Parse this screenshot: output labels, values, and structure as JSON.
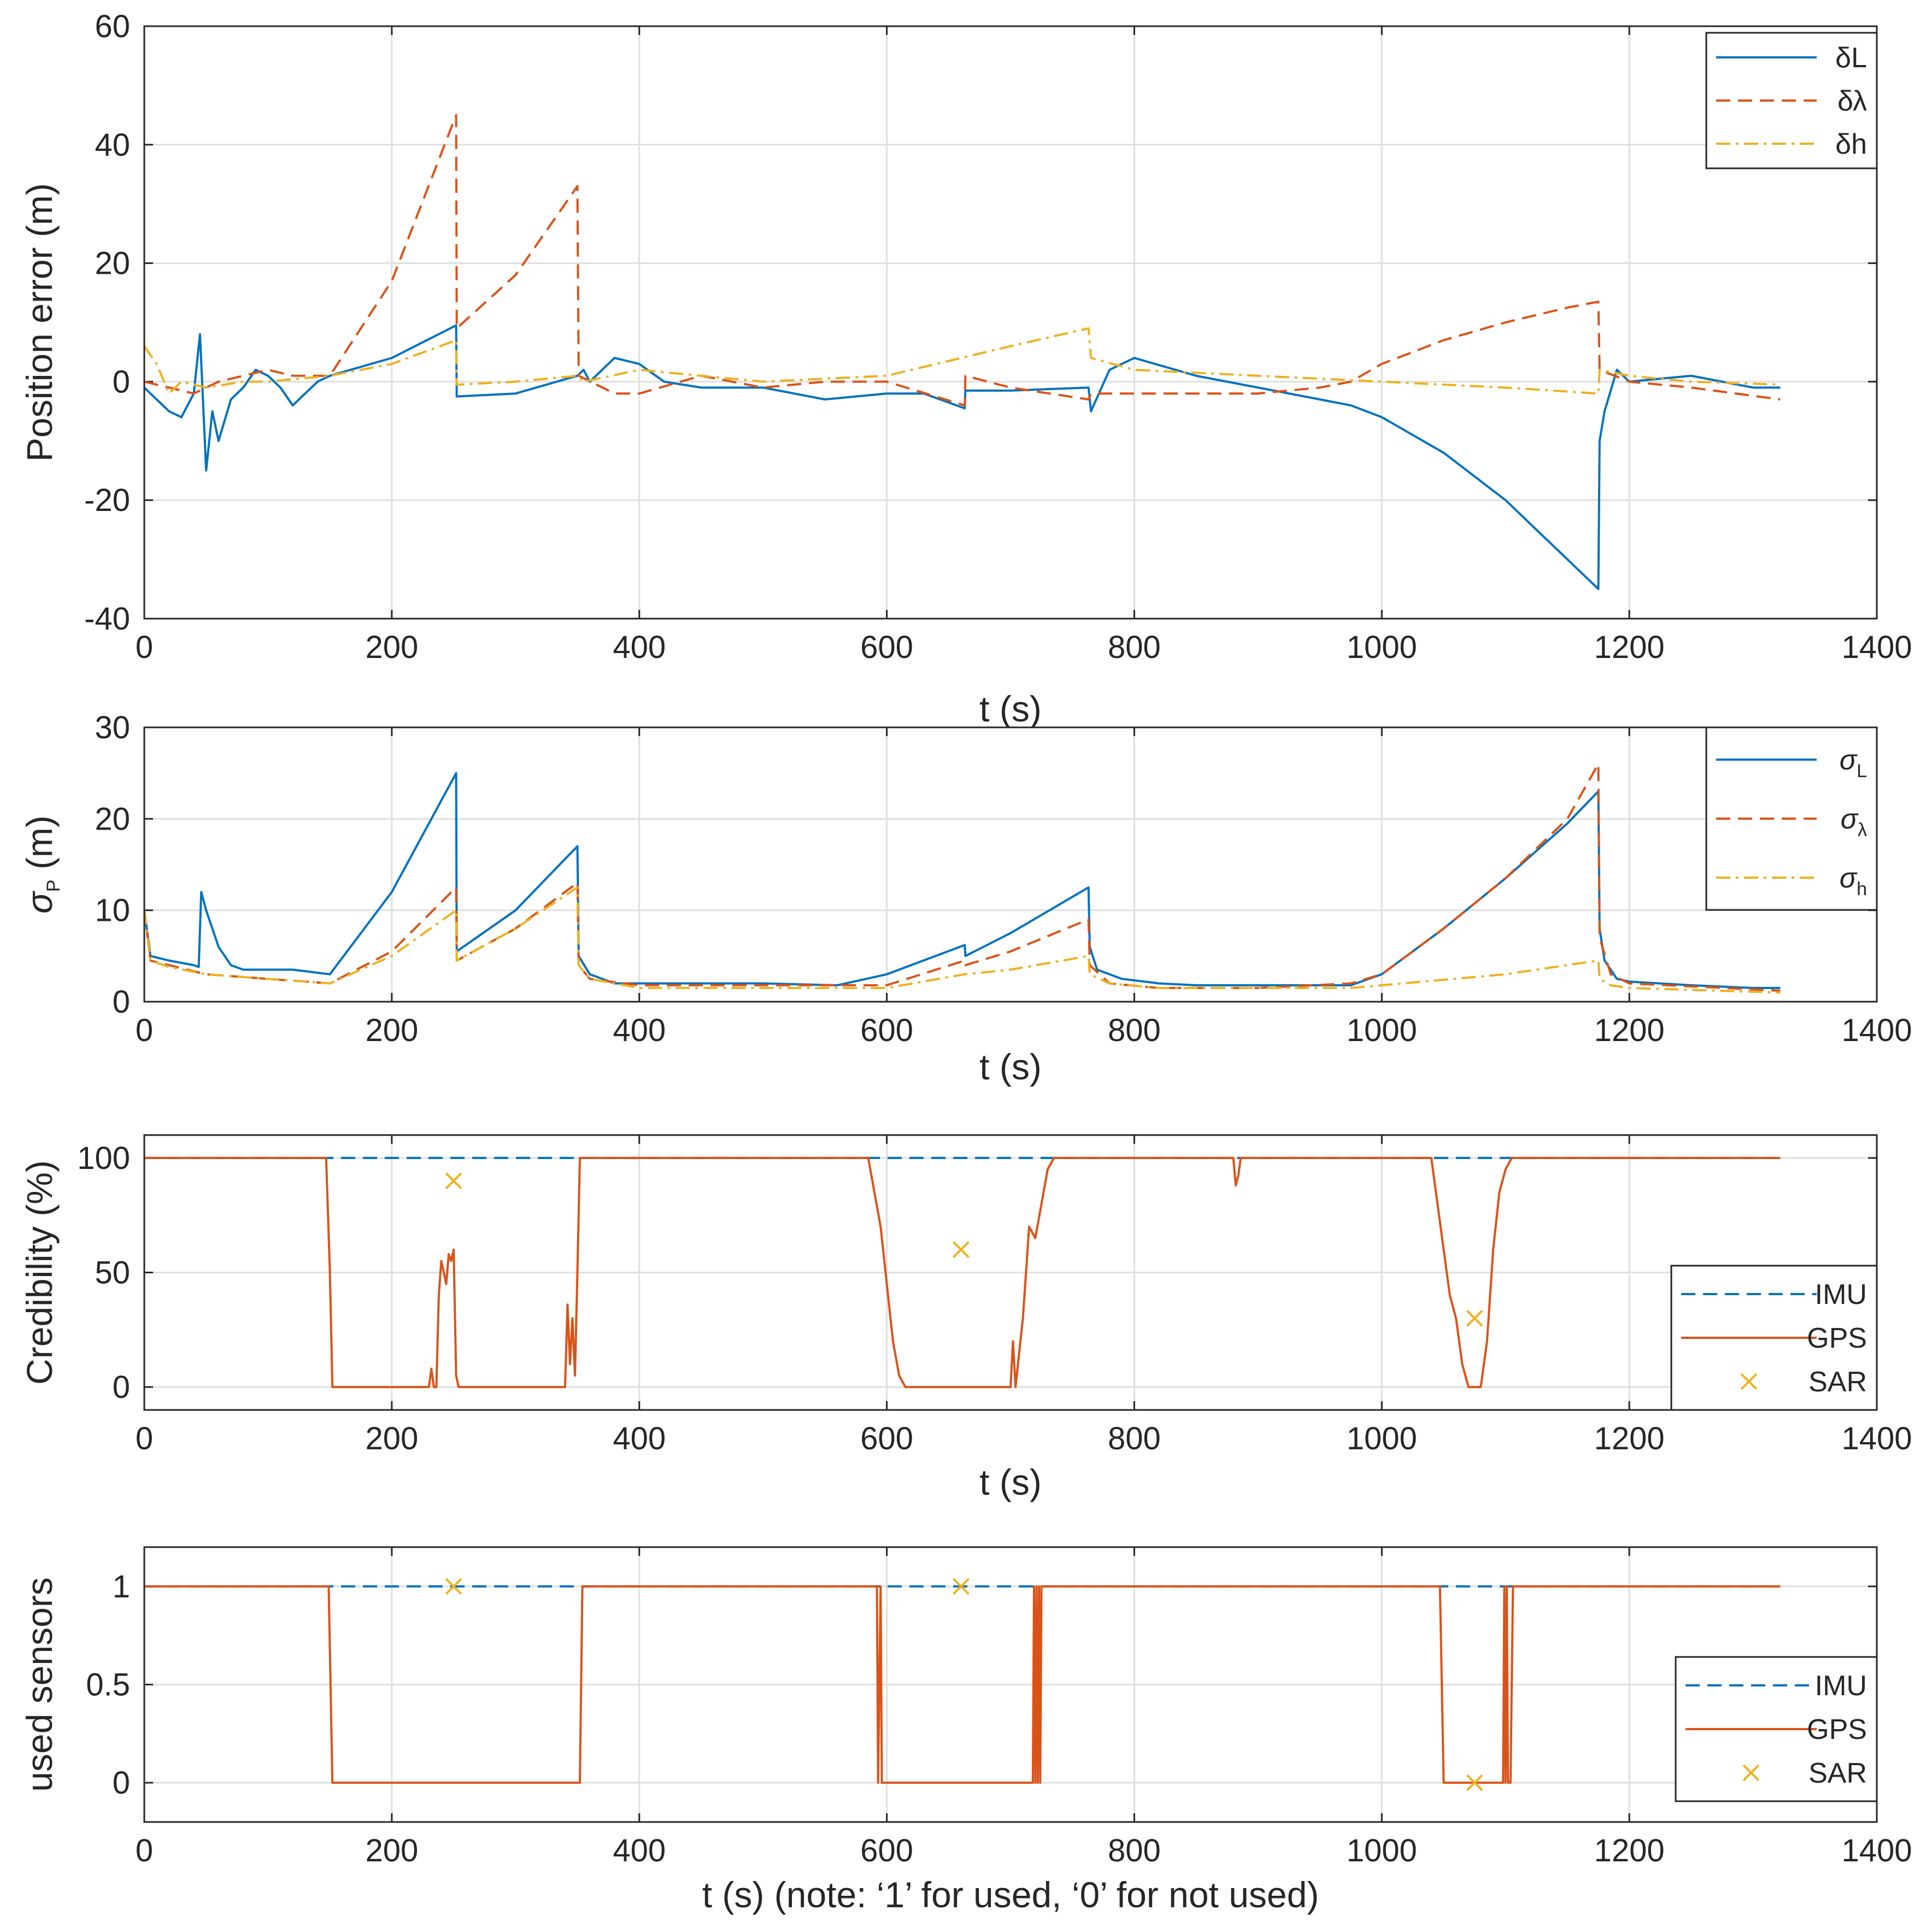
{
  "colors": {
    "blue": "#0072BD",
    "red": "#D95319",
    "yellow": "#EDB120",
    "grid": "#DFDFDF",
    "axis": "#262626"
  },
  "chart_data": [
    {
      "type": "line",
      "title": "",
      "xlabel": "t (s)",
      "ylabel": "Position error (m)",
      "xlim": [
        0,
        1400
      ],
      "ylim": [
        -40,
        60
      ],
      "xticks": [
        "0",
        "200",
        "400",
        "600",
        "800",
        "1000",
        "1200",
        "1400"
      ],
      "yticks": [
        "-40",
        "-20",
        "0",
        "20",
        "40",
        "60"
      ],
      "grid": true,
      "legend_position": "top-right",
      "series": [
        {
          "name": "δL",
          "sub": "",
          "style": "solid",
          "color": "#0072BD",
          "x": [
            0,
            10,
            20,
            30,
            40,
            45,
            50,
            55,
            60,
            70,
            80,
            90,
            100,
            110,
            120,
            130,
            140,
            150,
            200,
            252,
            252.5,
            300,
            350,
            355,
            360,
            380,
            400,
            420,
            450,
            500,
            550,
            600,
            630,
            663,
            663.5,
            700,
            763,
            765,
            780,
            800,
            850,
            900,
            950,
            975,
            1000,
            1050,
            1100,
            1150,
            1175,
            1176,
            1180,
            1190,
            1200,
            1250,
            1300,
            1322
          ],
          "y": [
            -1,
            -3,
            -5,
            -6,
            -2,
            8,
            -15,
            -5,
            -10,
            -3,
            -1,
            2,
            1,
            -1,
            -4,
            -2,
            0,
            1,
            4,
            9.5,
            -2.5,
            -2,
            1,
            2,
            0,
            4,
            3,
            0,
            -1,
            -1,
            -3,
            -2,
            -2,
            -4.5,
            -1.5,
            -1.5,
            -1,
            -5,
            2,
            4,
            1,
            -1,
            -3,
            -4,
            -6,
            -12,
            -20,
            -30,
            -35,
            -10,
            -5,
            2,
            0,
            1,
            -1,
            -1
          ]
        },
        {
          "name": "δλ",
          "sub": "",
          "style": "dashed",
          "color": "#D95319",
          "x": [
            0,
            20,
            40,
            60,
            80,
            100,
            120,
            150,
            200,
            252,
            252.5,
            300,
            350,
            351,
            380,
            400,
            450,
            500,
            550,
            600,
            663,
            663.5,
            700,
            763,
            765,
            800,
            850,
            900,
            950,
            975,
            1000,
            1050,
            1100,
            1150,
            1175,
            1176,
            1200,
            1250,
            1322
          ],
          "y": [
            0,
            -1,
            -2,
            0,
            1,
            2,
            1,
            1,
            17,
            45,
            9,
            18,
            33,
            1,
            -2,
            -2,
            1,
            -1,
            0,
            0,
            -4,
            1,
            -1,
            -3,
            -2,
            -2,
            -2,
            -2,
            -1,
            0,
            3,
            7,
            10,
            12.5,
            13.5,
            2,
            0,
            -1,
            -3
          ]
        },
        {
          "name": "δh",
          "sub": "",
          "style": "dashdot",
          "color": "#EDB120",
          "x": [
            0,
            10,
            20,
            30,
            50,
            80,
            100,
            150,
            200,
            252,
            252.5,
            300,
            350,
            355,
            400,
            450,
            500,
            600,
            700,
            763,
            765,
            800,
            900,
            1000,
            1100,
            1175,
            1176,
            1200,
            1250,
            1322
          ],
          "y": [
            6,
            3,
            -2,
            0,
            -1,
            0,
            0,
            1,
            3,
            7,
            -0.5,
            0,
            1,
            0,
            2,
            1,
            0,
            1,
            6,
            9,
            4,
            2,
            1,
            0,
            -1,
            -2,
            2,
            1,
            0,
            -0.5
          ]
        }
      ]
    },
    {
      "type": "line",
      "title": "",
      "xlabel": "t (s)",
      "ylabel": "σ",
      "ylabel_sub": "P",
      "ylabel_suffix": " (m)",
      "xlim": [
        0,
        1400
      ],
      "ylim": [
        0,
        30
      ],
      "xticks": [
        "0",
        "200",
        "400",
        "600",
        "800",
        "1000",
        "1200",
        "1400"
      ],
      "yticks": [
        "0",
        "10",
        "20",
        "30"
      ],
      "grid": true,
      "legend_position": "top-right",
      "series": [
        {
          "name": "σ",
          "sub": "L",
          "style": "solid",
          "color": "#0072BD",
          "x": [
            0,
            5,
            20,
            40,
            44,
            46,
            50,
            60,
            70,
            80,
            100,
            120,
            150,
            200,
            252,
            252.5,
            300,
            350,
            351,
            360,
            380,
            400,
            450,
            500,
            560,
            600,
            663,
            663.5,
            700,
            763,
            764,
            770,
            790,
            820,
            850,
            900,
            950,
            975,
            1000,
            1050,
            1100,
            1150,
            1175,
            1176,
            1180,
            1190,
            1200,
            1250,
            1300,
            1322
          ],
          "y": [
            10,
            5,
            4.5,
            4,
            3.8,
            12,
            10,
            6,
            4,
            3.5,
            3.5,
            3.5,
            3,
            12,
            25,
            5.5,
            10,
            17,
            5,
            3,
            2,
            2,
            2,
            2,
            1.8,
            3,
            6.2,
            5,
            7.5,
            12.5,
            6,
            3.5,
            2.5,
            2,
            1.8,
            1.8,
            1.8,
            1.8,
            3,
            8,
            13.5,
            19.5,
            23,
            8,
            4.5,
            2.5,
            2.2,
            1.8,
            1.5,
            1.5
          ]
        },
        {
          "name": "σ",
          "sub": "λ",
          "style": "dashed",
          "color": "#D95319",
          "x": [
            0,
            5,
            20,
            50,
            100,
            150,
            200,
            252,
            252.5,
            300,
            350,
            351,
            360,
            400,
            500,
            600,
            663,
            663.5,
            700,
            763,
            764,
            780,
            820,
            900,
            975,
            1000,
            1050,
            1100,
            1150,
            1175,
            1176,
            1185,
            1200,
            1322
          ],
          "y": [
            10,
            4.5,
            4,
            3,
            2.5,
            2,
            5.5,
            12.5,
            4.5,
            8,
            13,
            4,
            2.5,
            1.8,
            1.8,
            1.8,
            4.5,
            4,
            5.5,
            9,
            4,
            2,
            1.5,
            1.5,
            2,
            3,
            8,
            13.5,
            20,
            26,
            7,
            3,
            2,
            1.2
          ]
        },
        {
          "name": "σ",
          "sub": "h",
          "style": "dashdot",
          "color": "#EDB120",
          "x": [
            0,
            5,
            20,
            50,
            100,
            150,
            200,
            252,
            252.5,
            300,
            350,
            351,
            360,
            400,
            500,
            600,
            663,
            700,
            763,
            764,
            780,
            820,
            900,
            975,
            1000,
            1100,
            1175,
            1176,
            1185,
            1200,
            1322
          ],
          "y": [
            10,
            4.5,
            3.8,
            3,
            2.5,
            2,
            5,
            10,
            4.5,
            8,
            12.5,
            4,
            2.5,
            1.5,
            1.5,
            1.5,
            3,
            3.5,
            5,
            3,
            2,
            1.5,
            1.5,
            1.5,
            1.8,
            3,
            4.5,
            2.5,
            1.8,
            1.5,
            1
          ]
        }
      ]
    },
    {
      "type": "line",
      "title": "",
      "xlabel": "t (s)",
      "ylabel": "Credibility (%)",
      "xlim": [
        0,
        1400
      ],
      "ylim": [
        -10,
        110
      ],
      "xticks": [
        "0",
        "200",
        "400",
        "600",
        "800",
        "1000",
        "1200",
        "1400"
      ],
      "yticks": [
        "0",
        "50",
        "100"
      ],
      "grid": true,
      "legend_position": "bottom-right",
      "series": [
        {
          "name": "IMU",
          "sub": "",
          "style": "dashed",
          "color": "#0072BD",
          "x": [
            0,
            1322
          ],
          "y": [
            100,
            100
          ]
        },
        {
          "name": "GPS",
          "sub": "",
          "style": "solid",
          "color": "#D95319",
          "x": [
            0,
            147,
            150,
            152,
            230,
            232,
            234,
            236,
            238,
            240,
            242,
            244,
            246,
            248,
            250,
            252,
            254,
            256,
            258,
            340,
            342,
            344,
            346,
            348,
            350,
            352,
            355,
            585,
            590,
            595,
            600,
            605,
            610,
            615,
            620,
            700,
            702,
            704,
            710,
            715,
            720,
            725,
            730,
            735,
            740,
            880,
            882,
            884,
            886,
            890,
            1040,
            1045,
            1050,
            1055,
            1060,
            1065,
            1070,
            1080,
            1085,
            1090,
            1095,
            1100,
            1105,
            1110,
            1322
          ],
          "y": [
            100,
            100,
            50,
            0,
            0,
            8,
            0,
            0,
            40,
            55,
            50,
            45,
            58,
            55,
            60,
            5,
            0,
            0,
            0,
            0,
            36,
            10,
            30,
            5,
            50,
            100,
            100,
            100,
            85,
            70,
            45,
            20,
            5,
            0,
            0,
            0,
            20,
            0,
            30,
            70,
            65,
            80,
            95,
            100,
            100,
            100,
            88,
            92,
            100,
            100,
            100,
            80,
            60,
            40,
            30,
            10,
            0,
            0,
            20,
            60,
            85,
            95,
            100,
            100,
            100
          ]
        },
        {
          "name": "SAR",
          "sub": "",
          "style": "marker",
          "color": "#EDB120",
          "x": [
            250,
            660,
            1075
          ],
          "y": [
            90,
            60,
            30
          ]
        }
      ]
    },
    {
      "type": "line",
      "title": "",
      "xlabel": "t (s) (note:  ‘1’    for used,    ‘0’    for not used)",
      "ylabel": "used sensors",
      "xlim": [
        0,
        1400
      ],
      "ylim": [
        -0.2,
        1.2
      ],
      "xticks": [
        "0",
        "200",
        "400",
        "600",
        "800",
        "1000",
        "1200",
        "1400"
      ],
      "yticks": [
        "0",
        "0.5",
        "1"
      ],
      "grid": true,
      "legend_position": "bottom-right",
      "series": [
        {
          "name": "IMU",
          "sub": "",
          "style": "dashed",
          "color": "#0072BD",
          "x": [
            0,
            1322
          ],
          "y": [
            1,
            1
          ]
        },
        {
          "name": "GPS",
          "sub": "",
          "style": "solid",
          "color": "#D95319",
          "x": [
            0,
            149,
            152,
            352,
            354,
            592,
            593,
            595,
            596,
            718,
            719,
            720,
            721,
            722,
            723,
            724,
            725,
            1047,
            1050,
            1098,
            1099,
            1100,
            1101,
            1102,
            1104,
            1106,
            1322
          ],
          "y": [
            1,
            1,
            0,
            0,
            1,
            1,
            0,
            1,
            0,
            0,
            1,
            0,
            1,
            0,
            1,
            0,
            1,
            1,
            0,
            0,
            1,
            0,
            1,
            0,
            0,
            1,
            1
          ]
        },
        {
          "name": "SAR",
          "sub": "",
          "style": "marker",
          "color": "#EDB120",
          "x": [
            250,
            660,
            1075
          ],
          "y": [
            1,
            1,
            0
          ]
        }
      ]
    }
  ]
}
